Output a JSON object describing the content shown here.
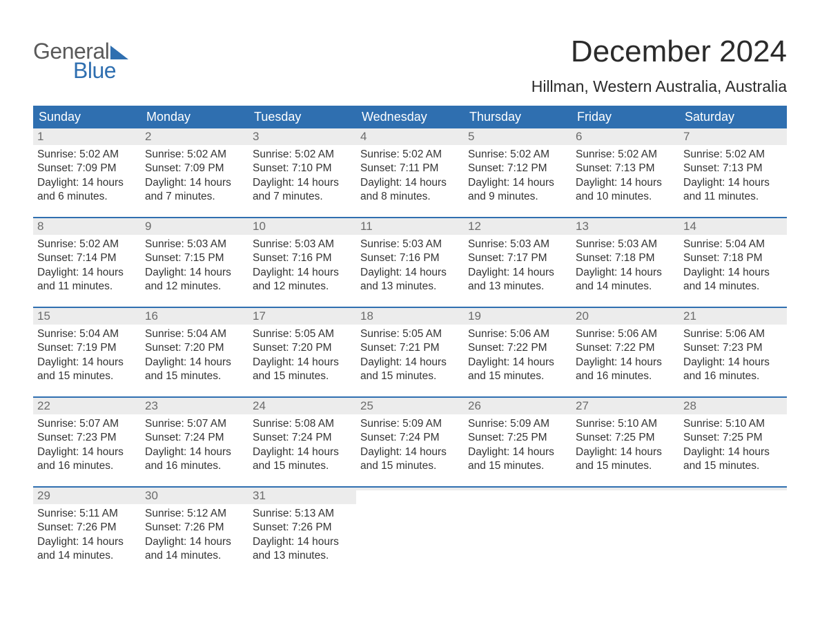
{
  "brand": {
    "line1": "General",
    "line2": "Blue"
  },
  "title": "December 2024",
  "location": "Hillman, Western Australia, Australia",
  "colors": {
    "header_bg": "#2f6fb0",
    "header_text": "#ffffff",
    "day_num_bg": "#ececec",
    "day_num_text": "#6b6b6b",
    "week_divider": "#2f6fb0",
    "body_text": "#333333",
    "brand_gray": "#5a5a5a",
    "brand_blue": "#2f6fb0",
    "page_bg": "#ffffff"
  },
  "typography": {
    "title_fontsize": 44,
    "location_fontsize": 23,
    "dow_fontsize": 18,
    "daynum_fontsize": 17,
    "body_fontsize": 15.5
  },
  "days_of_week": [
    "Sunday",
    "Monday",
    "Tuesday",
    "Wednesday",
    "Thursday",
    "Friday",
    "Saturday"
  ],
  "weeks": [
    [
      {
        "n": "1",
        "sunrise": "Sunrise: 5:02 AM",
        "sunset": "Sunset: 7:09 PM",
        "daylight": "Daylight: 14 hours and 6 minutes."
      },
      {
        "n": "2",
        "sunrise": "Sunrise: 5:02 AM",
        "sunset": "Sunset: 7:09 PM",
        "daylight": "Daylight: 14 hours and 7 minutes."
      },
      {
        "n": "3",
        "sunrise": "Sunrise: 5:02 AM",
        "sunset": "Sunset: 7:10 PM",
        "daylight": "Daylight: 14 hours and 7 minutes."
      },
      {
        "n": "4",
        "sunrise": "Sunrise: 5:02 AM",
        "sunset": "Sunset: 7:11 PM",
        "daylight": "Daylight: 14 hours and 8 minutes."
      },
      {
        "n": "5",
        "sunrise": "Sunrise: 5:02 AM",
        "sunset": "Sunset: 7:12 PM",
        "daylight": "Daylight: 14 hours and 9 minutes."
      },
      {
        "n": "6",
        "sunrise": "Sunrise: 5:02 AM",
        "sunset": "Sunset: 7:13 PM",
        "daylight": "Daylight: 14 hours and 10 minutes."
      },
      {
        "n": "7",
        "sunrise": "Sunrise: 5:02 AM",
        "sunset": "Sunset: 7:13 PM",
        "daylight": "Daylight: 14 hours and 11 minutes."
      }
    ],
    [
      {
        "n": "8",
        "sunrise": "Sunrise: 5:02 AM",
        "sunset": "Sunset: 7:14 PM",
        "daylight": "Daylight: 14 hours and 11 minutes."
      },
      {
        "n": "9",
        "sunrise": "Sunrise: 5:03 AM",
        "sunset": "Sunset: 7:15 PM",
        "daylight": "Daylight: 14 hours and 12 minutes."
      },
      {
        "n": "10",
        "sunrise": "Sunrise: 5:03 AM",
        "sunset": "Sunset: 7:16 PM",
        "daylight": "Daylight: 14 hours and 12 minutes."
      },
      {
        "n": "11",
        "sunrise": "Sunrise: 5:03 AM",
        "sunset": "Sunset: 7:16 PM",
        "daylight": "Daylight: 14 hours and 13 minutes."
      },
      {
        "n": "12",
        "sunrise": "Sunrise: 5:03 AM",
        "sunset": "Sunset: 7:17 PM",
        "daylight": "Daylight: 14 hours and 13 minutes."
      },
      {
        "n": "13",
        "sunrise": "Sunrise: 5:03 AM",
        "sunset": "Sunset: 7:18 PM",
        "daylight": "Daylight: 14 hours and 14 minutes."
      },
      {
        "n": "14",
        "sunrise": "Sunrise: 5:04 AM",
        "sunset": "Sunset: 7:18 PM",
        "daylight": "Daylight: 14 hours and 14 minutes."
      }
    ],
    [
      {
        "n": "15",
        "sunrise": "Sunrise: 5:04 AM",
        "sunset": "Sunset: 7:19 PM",
        "daylight": "Daylight: 14 hours and 15 minutes."
      },
      {
        "n": "16",
        "sunrise": "Sunrise: 5:04 AM",
        "sunset": "Sunset: 7:20 PM",
        "daylight": "Daylight: 14 hours and 15 minutes."
      },
      {
        "n": "17",
        "sunrise": "Sunrise: 5:05 AM",
        "sunset": "Sunset: 7:20 PM",
        "daylight": "Daylight: 14 hours and 15 minutes."
      },
      {
        "n": "18",
        "sunrise": "Sunrise: 5:05 AM",
        "sunset": "Sunset: 7:21 PM",
        "daylight": "Daylight: 14 hours and 15 minutes."
      },
      {
        "n": "19",
        "sunrise": "Sunrise: 5:06 AM",
        "sunset": "Sunset: 7:22 PM",
        "daylight": "Daylight: 14 hours and 15 minutes."
      },
      {
        "n": "20",
        "sunrise": "Sunrise: 5:06 AM",
        "sunset": "Sunset: 7:22 PM",
        "daylight": "Daylight: 14 hours and 16 minutes."
      },
      {
        "n": "21",
        "sunrise": "Sunrise: 5:06 AM",
        "sunset": "Sunset: 7:23 PM",
        "daylight": "Daylight: 14 hours and 16 minutes."
      }
    ],
    [
      {
        "n": "22",
        "sunrise": "Sunrise: 5:07 AM",
        "sunset": "Sunset: 7:23 PM",
        "daylight": "Daylight: 14 hours and 16 minutes."
      },
      {
        "n": "23",
        "sunrise": "Sunrise: 5:07 AM",
        "sunset": "Sunset: 7:24 PM",
        "daylight": "Daylight: 14 hours and 16 minutes."
      },
      {
        "n": "24",
        "sunrise": "Sunrise: 5:08 AM",
        "sunset": "Sunset: 7:24 PM",
        "daylight": "Daylight: 14 hours and 15 minutes."
      },
      {
        "n": "25",
        "sunrise": "Sunrise: 5:09 AM",
        "sunset": "Sunset: 7:24 PM",
        "daylight": "Daylight: 14 hours and 15 minutes."
      },
      {
        "n": "26",
        "sunrise": "Sunrise: 5:09 AM",
        "sunset": "Sunset: 7:25 PM",
        "daylight": "Daylight: 14 hours and 15 minutes."
      },
      {
        "n": "27",
        "sunrise": "Sunrise: 5:10 AM",
        "sunset": "Sunset: 7:25 PM",
        "daylight": "Daylight: 14 hours and 15 minutes."
      },
      {
        "n": "28",
        "sunrise": "Sunrise: 5:10 AM",
        "sunset": "Sunset: 7:25 PM",
        "daylight": "Daylight: 14 hours and 15 minutes."
      }
    ],
    [
      {
        "n": "29",
        "sunrise": "Sunrise: 5:11 AM",
        "sunset": "Sunset: 7:26 PM",
        "daylight": "Daylight: 14 hours and 14 minutes."
      },
      {
        "n": "30",
        "sunrise": "Sunrise: 5:12 AM",
        "sunset": "Sunset: 7:26 PM",
        "daylight": "Daylight: 14 hours and 14 minutes."
      },
      {
        "n": "31",
        "sunrise": "Sunrise: 5:13 AM",
        "sunset": "Sunset: 7:26 PM",
        "daylight": "Daylight: 14 hours and 13 minutes."
      },
      {
        "empty": true
      },
      {
        "empty": true
      },
      {
        "empty": true
      },
      {
        "empty": true
      }
    ]
  ]
}
